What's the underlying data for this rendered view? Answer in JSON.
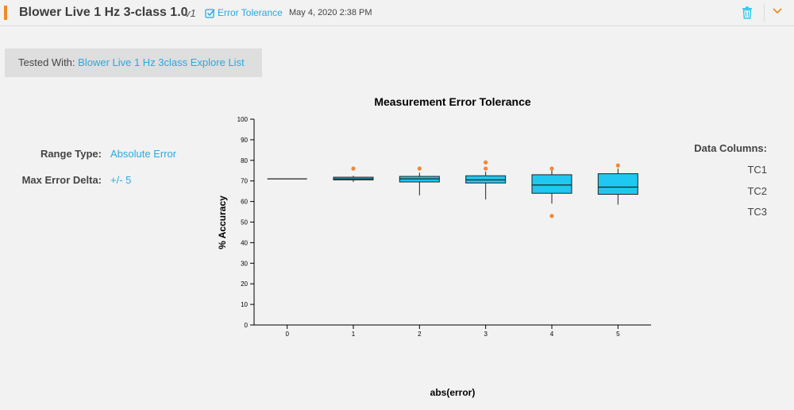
{
  "header": {
    "title": "Blower Live 1 Hz 3-class 1.0",
    "version": "v1",
    "tag": "Error Tolerance",
    "timestamp": "May 4, 2020 2:38 PM",
    "accent_color": "#f08a24",
    "link_color": "#29a8e0"
  },
  "tested": {
    "label": "Tested With:",
    "link": "Blower Live 1 Hz 3class Explore List"
  },
  "params": {
    "range_label": "Range Type:",
    "range_value": "Absolute Error",
    "max_label": "Max Error Delta:",
    "max_value": "+/- 5"
  },
  "data_columns": {
    "label": "Data Columns:",
    "items": [
      "TC1",
      "TC2",
      "TC3"
    ]
  },
  "chart_data": {
    "type": "box",
    "title": "Measurement Error Tolerance",
    "xlabel": "abs(error)",
    "ylabel": "% Accuracy",
    "ylim": [
      0,
      100
    ],
    "yticks": [
      0,
      10,
      20,
      30,
      40,
      50,
      60,
      70,
      80,
      90,
      100
    ],
    "categories": [
      "0",
      "1",
      "2",
      "3",
      "4",
      "5"
    ],
    "box_color": "#1ec8f0",
    "outlier_color": "#f0883a",
    "boxes": [
      {
        "x": "0",
        "min": 71,
        "q1": 71,
        "median": 71,
        "q3": 71,
        "max": 71,
        "outliers": []
      },
      {
        "x": "1",
        "min": 69.5,
        "q1": 70.5,
        "median": 71,
        "q3": 71.8,
        "max": 72.5,
        "outliers": [
          76
        ]
      },
      {
        "x": "2",
        "min": 63,
        "q1": 69.5,
        "median": 71,
        "q3": 72.2,
        "max": 74,
        "outliers": [
          76
        ]
      },
      {
        "x": "3",
        "min": 61,
        "q1": 69,
        "median": 70.5,
        "q3": 72.5,
        "max": 74.5,
        "outliers": [
          76,
          79
        ]
      },
      {
        "x": "4",
        "min": 59,
        "q1": 64,
        "median": 68,
        "q3": 73,
        "max": 75.5,
        "outliers": [
          76,
          53
        ]
      },
      {
        "x": "5",
        "min": 58.5,
        "q1": 63.5,
        "median": 67,
        "q3": 73.5,
        "max": 76,
        "outliers": [
          77.5
        ]
      }
    ]
  }
}
